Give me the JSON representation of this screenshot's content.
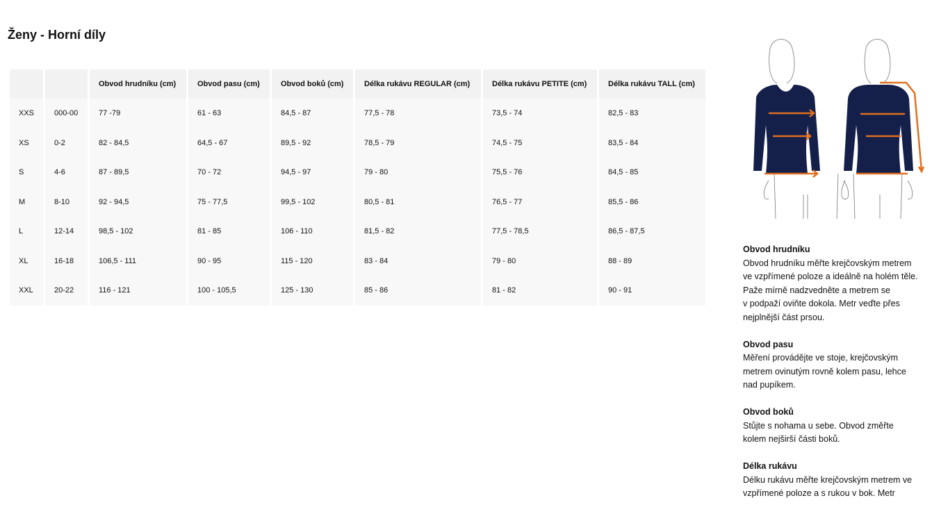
{
  "title": "Ženy - Horní díly",
  "table": {
    "headers": [
      "",
      "",
      "Obvod hrudníku (cm)",
      "Obvod pasu (cm)",
      "Obvod boků (cm)",
      "Délka rukávu REGULAR (cm)",
      "Délka rukávu PETITE (cm)",
      "Délka rukávu TALL (cm)"
    ],
    "rows": [
      [
        "XXS",
        "000-00",
        "77 -79",
        "61 - 63",
        "84,5 - 87",
        "77,5 - 78",
        "73,5 - 74",
        "82,5 - 83"
      ],
      [
        "XS",
        "0-2",
        "82 - 84,5",
        "64,5 - 67",
        "89,5 - 92",
        "78,5 - 79",
        "74,5 - 75",
        "83,5 - 84"
      ],
      [
        "S",
        "4-6",
        "87 - 89,5",
        "70 - 72",
        "94,5 - 97",
        "79 - 80",
        "75,5 - 76",
        "84,5 - 85"
      ],
      [
        "M",
        "8-10",
        "92 - 94,5",
        "75 - 77,5",
        "99,5 - 102",
        "80,5 - 81",
        "76,5 - 77",
        "85,5 - 86"
      ],
      [
        "L",
        "12-14",
        "98,5 - 102",
        "81 - 85",
        "106 - 110",
        "81,5 - 82",
        "77,5 - 78,5",
        "86,5 - 87,5"
      ],
      [
        "XL",
        "16-18",
        "106,5 - 111",
        "90 - 95",
        "115 - 120",
        "83 - 84",
        "79 - 80",
        "88 - 89"
      ],
      [
        "XXL",
        "20-22",
        "116 - 121",
        "100 - 105,5",
        "125 - 130",
        "85 - 86",
        "81 - 82",
        "90 - 91"
      ]
    ]
  },
  "figure": {
    "shirt_color": "#14204a",
    "arrow_color": "#e07020"
  },
  "descriptions": [
    {
      "heading": "Obvod hrudníku",
      "lines": [
        "Obvod hrudníku měřte krejčovským metrem",
        "ve vzpřímené poloze a ideálně na holém těle.",
        "Paže mírně nadzvedněte a metrem se",
        "v podpaží oviňte dokola. Metr veďte přes",
        "nejplnější část prsou."
      ]
    },
    {
      "heading": "Obvod pasu",
      "lines": [
        "Měření provádějte ve stoje, krejčovským",
        "metrem ovinutým rovně kolem pasu, lehce",
        "nad pupíkem."
      ]
    },
    {
      "heading": "Obvod boků",
      "lines": [
        "Stůjte s nohama u sebe. Obvod změřte",
        "kolem nejširší části boků."
      ]
    },
    {
      "heading": "Délka rukávu",
      "lines": [
        "Délku rukávu měřte krejčovským metrem ve",
        "vzpřímené poloze a s rukou v bok. Metr"
      ]
    }
  ]
}
